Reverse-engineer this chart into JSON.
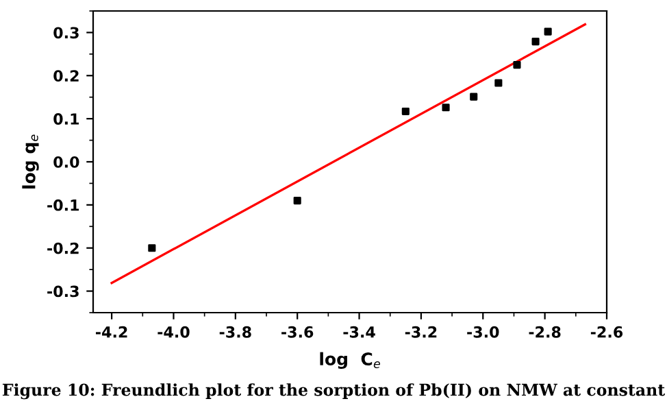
{
  "chart_data": {
    "type": "scatter",
    "xlabel": "log  C$_{e}$",
    "ylabel": "log q$_{e}$",
    "annotations": [
      "Figure 10: Freundlich plot for the sorption of Pb(II) on NMW at constant"
    ],
    "xlim": [
      -4.26,
      -2.6
    ],
    "ylim": [
      -0.35,
      0.35
    ],
    "xticks": [
      -4.2,
      {
        "value": -4.0,
        "label": "-4.0"
      },
      -3.8,
      -3.6,
      -3.4,
      -3.2,
      {
        "value": -3.0,
        "label": "-3.0"
      },
      -2.8,
      -2.6
    ],
    "yticks": [
      -0.3,
      -0.2,
      -0.1,
      {
        "value": 0.0,
        "label": "0.0"
      },
      0.1,
      0.2,
      0.3
    ],
    "grid": false,
    "series": [
      {
        "color": "#000000",
        "marker": "square",
        "x": [
          -4.07,
          -3.6,
          -3.25,
          -3.12,
          -3.03,
          -2.95,
          -2.89,
          -2.83,
          -2.79
        ],
        "values": [
          -0.2,
          -0.09,
          0.117,
          0.126,
          0.151,
          0.183,
          0.225,
          0.279,
          0.302
        ]
      },
      {
        "type": "line",
        "color": "#ff0000",
        "x": [
          -4.2,
          -2.67
        ],
        "values": [
          -0.281,
          0.319
        ]
      }
    ]
  }
}
